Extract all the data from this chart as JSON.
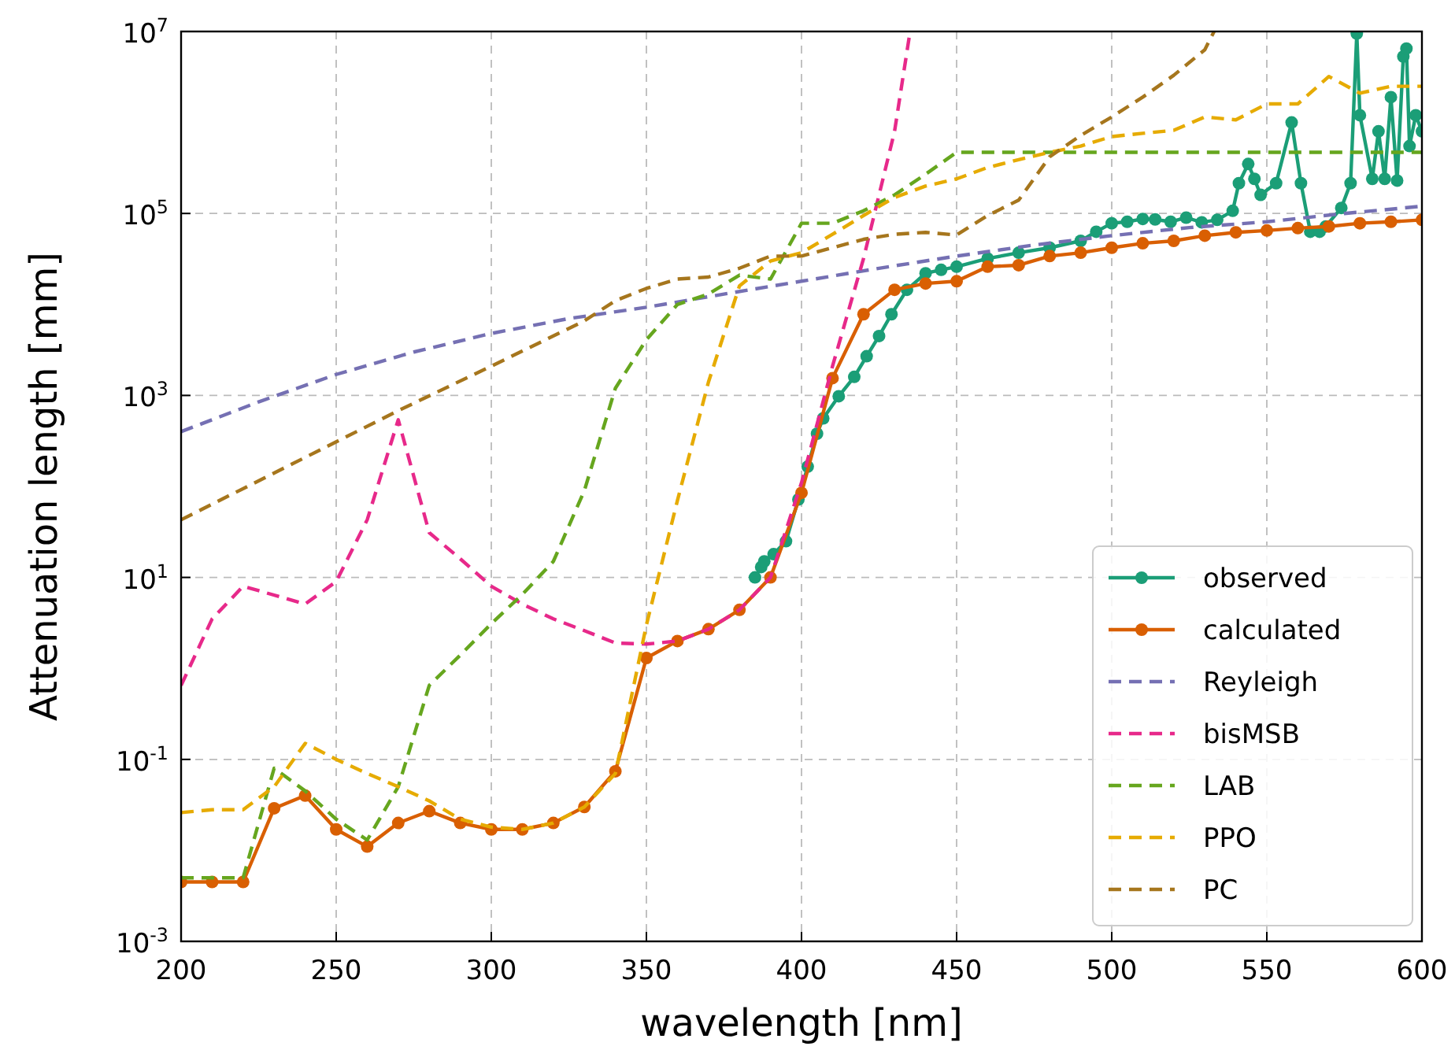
{
  "chart_data": {
    "type": "line",
    "xlabel": "wavelength [nm]",
    "ylabel": "Attenuation length [mm]",
    "log": "y",
    "grid": true,
    "legend": "bottom right",
    "xlim": [
      200,
      600
    ],
    "xticks": [
      200,
      250,
      300,
      350,
      400,
      450,
      500,
      550,
      600
    ],
    "ylim": [
      0.001,
      10000000
    ],
    "yticks": [
      {
        "value": 0.001,
        "label": "10$^{-3}$"
      },
      {
        "value": 0.1,
        "label": "10$^{-1}$"
      },
      {
        "value": 10,
        "label": "10$^{1}$"
      },
      {
        "value": 1000,
        "label": "10$^{3}$"
      },
      {
        "value": 100000,
        "label": "10$^{5}$"
      },
      {
        "value": 10000000,
        "label": "10$^{7}$"
      }
    ],
    "series": [
      {
        "name": "observed",
        "color": "#1b9e77",
        "marker": "circle",
        "line_style": "solid",
        "x": [
          385,
          387,
          388,
          391,
          395,
          399,
          402,
          405,
          407,
          412,
          417,
          421,
          425,
          429,
          434,
          440,
          445,
          450,
          460,
          470,
          480,
          490,
          495,
          500,
          505,
          510,
          514,
          519,
          524,
          529,
          534,
          539,
          541,
          544,
          546,
          548,
          553,
          558,
          561,
          564,
          567,
          569,
          574,
          577,
          579,
          580,
          584,
          586,
          588,
          590,
          592,
          594,
          595,
          596,
          598,
          600
        ],
        "values": [
          10,
          13,
          15,
          18,
          25,
          72,
          165,
          380,
          560,
          980,
          1600,
          2700,
          4500,
          7800,
          14500,
          22000,
          24000,
          26000,
          32000,
          37000,
          42000,
          50000,
          63000,
          78000,
          81000,
          87000,
          86000,
          81000,
          90000,
          80000,
          85000,
          107000,
          215000,
          350000,
          240000,
          160000,
          215000,
          1000000,
          215000,
          63000,
          63000,
          72000,
          115000,
          215000,
          9500000,
          1200000,
          240000,
          800000,
          240000,
          1900000,
          230000,
          5300000,
          6500000,
          550000,
          1200000,
          800000
        ]
      },
      {
        "name": "calculated",
        "color": "#d95f02",
        "marker": "circle",
        "line_style": "solid",
        "x": [
          200,
          210,
          220,
          230,
          240,
          250,
          260,
          270,
          280,
          290,
          300,
          310,
          320,
          330,
          340,
          350,
          360,
          370,
          380,
          390,
          400,
          410,
          420,
          430,
          440,
          450,
          460,
          470,
          480,
          490,
          500,
          510,
          520,
          530,
          540,
          550,
          560,
          570,
          580,
          590,
          600
        ],
        "values": [
          0.0045,
          0.0045,
          0.0045,
          0.029,
          0.04,
          0.017,
          0.011,
          0.02,
          0.027,
          0.02,
          0.017,
          0.017,
          0.02,
          0.03,
          0.074,
          1.3,
          2,
          2.7,
          4.4,
          10,
          85,
          1550,
          7800,
          14500,
          17000,
          18000,
          26000,
          27000,
          34000,
          37000,
          42000,
          47000,
          50000,
          57000,
          62000,
          65000,
          69000,
          72000,
          78000,
          81000,
          85000
        ]
      },
      {
        "name": "Reyleigh",
        "color": "#7570b3",
        "marker": "none",
        "line_style": "dashed",
        "x": [
          200,
          225,
          250,
          275,
          300,
          325,
          350,
          375,
          400,
          425,
          450,
          475,
          500,
          525,
          550,
          575,
          600
        ],
        "values": [
          400,
          850,
          1700,
          3000,
          4800,
          7000,
          9300,
          13000,
          18000,
          25000,
          34000,
          45000,
          57000,
          70000,
          81000,
          100000,
          120000
        ]
      },
      {
        "name": "bisMSB",
        "color": "#e7298a",
        "marker": "none",
        "line_style": "dashed",
        "x": [
          200,
          210,
          220,
          240,
          250,
          260,
          270,
          280,
          290,
          300,
          310,
          320,
          330,
          340,
          350,
          360,
          370,
          380,
          390,
          400,
          410,
          420,
          430,
          435
        ],
        "values": [
          0.65,
          3.5,
          8,
          5.1,
          9,
          43,
          540,
          31,
          16,
          8,
          5.1,
          3.5,
          2.6,
          1.9,
          1.85,
          2,
          2.7,
          4.4,
          10,
          110,
          2100,
          32000,
          800000,
          10000000
        ]
      },
      {
        "name": "LAB",
        "color": "#66a61e",
        "marker": "none",
        "line_style": "dashed",
        "x": [
          200,
          210,
          220,
          230,
          240,
          250,
          260,
          270,
          280,
          290,
          300,
          310,
          320,
          330,
          340,
          350,
          360,
          370,
          380,
          390,
          400,
          410,
          420,
          430,
          440,
          450,
          500,
          550,
          600
        ],
        "values": [
          0.005,
          0.005,
          0.005,
          0.08,
          0.045,
          0.022,
          0.013,
          0.05,
          0.65,
          1.4,
          3.1,
          6.5,
          15,
          90,
          1200,
          4100,
          10000,
          13000,
          21000,
          19000,
          78000,
          78000,
          107000,
          160000,
          270000,
          470000,
          470000,
          470000,
          470000
        ]
      },
      {
        "name": "PPO",
        "color": "#e6ab02",
        "marker": "none",
        "line_style": "dashed",
        "x": [
          200,
          210,
          220,
          230,
          240,
          250,
          260,
          270,
          280,
          290,
          300,
          310,
          320,
          330,
          340,
          350,
          360,
          370,
          380,
          390,
          400,
          410,
          420,
          430,
          440,
          450,
          460,
          470,
          480,
          490,
          500,
          510,
          520,
          530,
          540,
          550,
          560,
          570,
          580,
          590,
          600
        ],
        "values": [
          0.026,
          0.028,
          0.028,
          0.05,
          0.15,
          0.1,
          0.07,
          0.05,
          0.035,
          0.022,
          0.018,
          0.017,
          0.02,
          0.03,
          0.07,
          3,
          70,
          1400,
          16000,
          30000,
          37000,
          59000,
          95000,
          150000,
          200000,
          240000,
          320000,
          390000,
          470000,
          550000,
          700000,
          760000,
          820000,
          1150000,
          1070000,
          1600000,
          1600000,
          3200000,
          2100000,
          2500000,
          2500000
        ]
      },
      {
        "name": "PC",
        "color": "#a6761d",
        "marker": "none",
        "line_style": "dashed",
        "x": [
          200,
          270,
          300,
          330,
          340,
          350,
          360,
          370,
          380,
          390,
          400,
          410,
          420,
          430,
          440,
          450,
          460,
          470,
          480,
          490,
          500,
          510,
          520,
          530,
          533
        ],
        "values": [
          43,
          680,
          2100,
          6600,
          11000,
          15000,
          19000,
          20000,
          25000,
          34000,
          34000,
          42000,
          52000,
          59000,
          62000,
          58000,
          95000,
          140000,
          420000,
          720000,
          1150000,
          1900000,
          3300000,
          6300000,
          10000000
        ]
      }
    ]
  }
}
